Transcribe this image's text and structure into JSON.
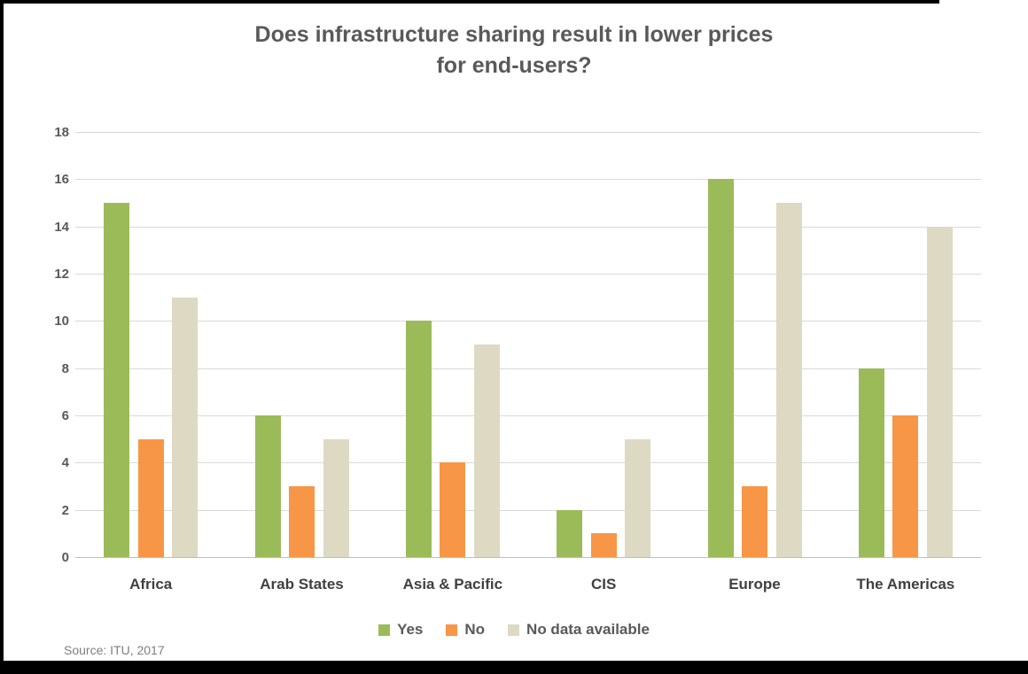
{
  "title_lines": [
    "Does infrastructure sharing result in lower prices",
    "for end-users?"
  ],
  "source_note": "Source: ITU, 2017",
  "colors": {
    "yes": "#9BBB59",
    "no": "#F79646",
    "no_data": "#DDD9C3",
    "title_text": "#595959",
    "axis_text": "#595959",
    "category_text": "#404040",
    "legend_text": "#595959",
    "gridline": "#D9D9D9",
    "axis_line": "#BFBFBF",
    "source_text": "#7F7F7F",
    "frame_border": "#000000",
    "background": "#FFFFFF"
  },
  "chart_data": {
    "type": "bar",
    "title": "Does infrastructure sharing result in lower prices for end-users?",
    "categories": [
      "Africa",
      "Arab States",
      "Asia & Pacific",
      "CIS",
      "Europe",
      "The Americas"
    ],
    "series": [
      {
        "name": "Yes",
        "color": "#9BBB59",
        "values": [
          15,
          6,
          10,
          2,
          16,
          8
        ]
      },
      {
        "name": "No",
        "color": "#F79646",
        "values": [
          5,
          3,
          4,
          1,
          3,
          6
        ]
      },
      {
        "name": "No data available",
        "color": "#DDD9C3",
        "values": [
          11,
          5,
          9,
          5,
          15,
          14
        ]
      }
    ],
    "xlabel": "",
    "ylabel": "",
    "ylim": [
      0,
      18
    ],
    "yticks": [
      0,
      2,
      4,
      6,
      8,
      10,
      12,
      14,
      16,
      18
    ],
    "grid": true,
    "legend_position": "bottom",
    "source": "Source: ITU, 2017"
  }
}
